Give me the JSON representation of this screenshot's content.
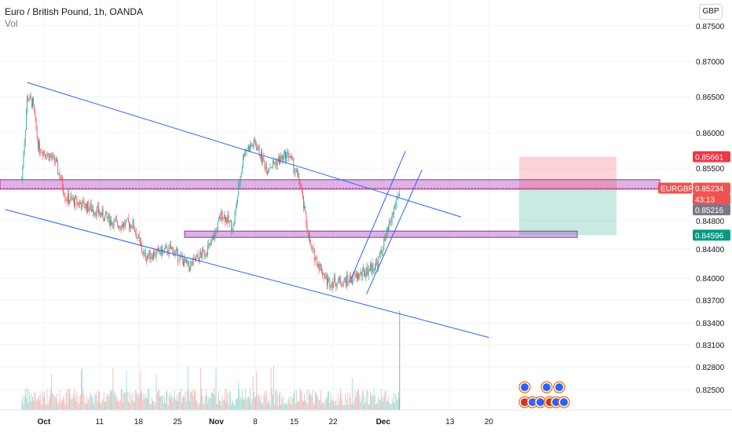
{
  "header": {
    "title": "Euro / British Pound, 1h, OANDA",
    "subtitle": "Vol"
  },
  "price_axis": {
    "currency_button": "GBP",
    "ticks": [
      "0.87500",
      "0.87000",
      "0.86500",
      "0.86000",
      "0.85500",
      "0.84800",
      "0.84400",
      "0.84000",
      "0.83700",
      "0.83400",
      "0.83100",
      "0.82800",
      "0.82500"
    ]
  },
  "time_axis": {
    "labels": [
      "Oct",
      "11",
      "18",
      "25",
      "Nov",
      "8",
      "15",
      "22",
      "Dec",
      "13",
      "20"
    ]
  },
  "price_labels": {
    "stop_level": "0.85661",
    "symbol": "EURGBP",
    "current_price": "0.85234",
    "countdown": "43:13",
    "entry_level": "0.85216",
    "target_level": "0.84596"
  },
  "colors": {
    "up_candle": "#26a69a",
    "down_candle": "#ef5350",
    "trendline": "#2962ff",
    "zone": "#9c27b0",
    "stop_zone": "#f23645",
    "target_zone": "#089981"
  },
  "chart_data": {
    "type": "candlestick",
    "symbol": "EURGBP",
    "interval": "1h",
    "source": "OANDA",
    "ylim": [
      0.822,
      0.878
    ],
    "x_ticks": [
      "Oct",
      "11",
      "18",
      "25",
      "Nov",
      "8",
      "15",
      "22",
      "Dec",
      "13",
      "20"
    ],
    "price_path": [
      {
        "date": "Sep 27",
        "price": 0.8535
      },
      {
        "date": "Sep 28",
        "price": 0.865
      },
      {
        "date": "Sep 29",
        "price": 0.864
      },
      {
        "date": "Sep 30",
        "price": 0.858
      },
      {
        "date": "Oct 3",
        "price": 0.856
      },
      {
        "date": "Oct 5",
        "price": 0.851
      },
      {
        "date": "Oct 10",
        "price": 0.8495
      },
      {
        "date": "Oct 14",
        "price": 0.8475
      },
      {
        "date": "Oct 17",
        "price": 0.8475
      },
      {
        "date": "Oct 19",
        "price": 0.843
      },
      {
        "date": "Oct 24",
        "price": 0.844
      },
      {
        "date": "Oct 27",
        "price": 0.8415
      },
      {
        "date": "Oct 31",
        "price": 0.8445
      },
      {
        "date": "Nov 2",
        "price": 0.849
      },
      {
        "date": "Nov 4",
        "price": 0.847
      },
      {
        "date": "Nov 6",
        "price": 0.8575
      },
      {
        "date": "Nov 8",
        "price": 0.8585
      },
      {
        "date": "Nov 10",
        "price": 0.855
      },
      {
        "date": "Nov 14",
        "price": 0.857
      },
      {
        "date": "Nov 16",
        "price": 0.853
      },
      {
        "date": "Nov 18",
        "price": 0.844
      },
      {
        "date": "Nov 21",
        "price": 0.8395
      },
      {
        "date": "Nov 24",
        "price": 0.8395
      },
      {
        "date": "Nov 27",
        "price": 0.8405
      },
      {
        "date": "Nov 30",
        "price": 0.842
      },
      {
        "date": "Dec 2",
        "price": 0.847
      },
      {
        "date": "Dec 4",
        "price": 0.8523
      }
    ],
    "volume_spike": {
      "date": "Dec 4"
    },
    "position": {
      "stop": 0.85661,
      "entry": 0.85216,
      "target": 0.84596
    },
    "zones": [
      {
        "from": 0.8522,
        "to": 0.8536
      },
      {
        "from": 0.8455,
        "to": 0.8462
      }
    ],
    "trendlines": [
      {
        "from": {
          "date": "Sep 28",
          "price": 0.867
        },
        "to": {
          "date": "Dec 15",
          "price": 0.8485
        }
      },
      {
        "from": {
          "date": "Sep 24",
          "price": 0.8495
        },
        "to": {
          "date": "Dec 20",
          "price": 0.832
        }
      }
    ],
    "channel": [
      {
        "from": {
          "date": "Nov 25",
          "price": 0.8395
        },
        "to": {
          "date": "Dec 5",
          "price": 0.8574
        }
      },
      {
        "from": {
          "date": "Nov 28",
          "price": 0.8378
        },
        "to": {
          "date": "Dec 8",
          "price": 0.8548
        }
      }
    ]
  }
}
